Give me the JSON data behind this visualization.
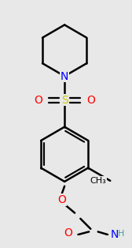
{
  "background_color": "#e8e8e8",
  "bond_color": "#000000",
  "bond_width": 1.8,
  "atom_colors": {
    "N": "#0000ff",
    "O": "#ff0000",
    "S": "#cccc00",
    "C": "#000000",
    "H": "#4a9a9a"
  },
  "font_size_atom": 10,
  "font_size_H": 8
}
